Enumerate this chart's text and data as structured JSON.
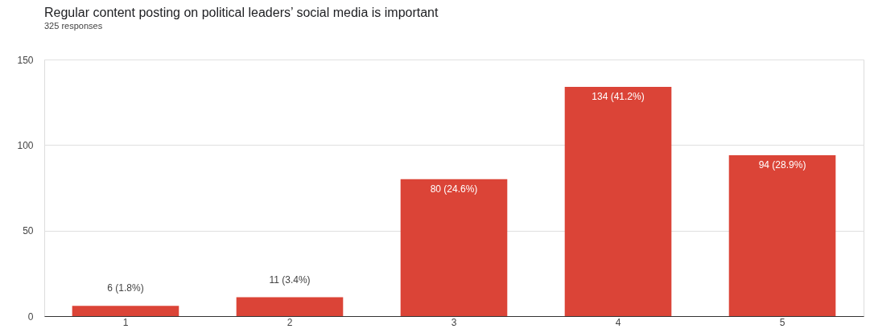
{
  "chart_data": {
    "type": "bar",
    "title": "Regular content posting on political leaders’ social media is important",
    "subtitle": "325 responses",
    "categories": [
      "1",
      "2",
      "3",
      "4",
      "5"
    ],
    "values": [
      6,
      11,
      80,
      134,
      94
    ],
    "value_labels": [
      "6 (1.8%)",
      "11 (3.4%)",
      "80 (24.6%)",
      "134 (41.2%)",
      "94 (28.9%)"
    ],
    "color": "#db4437",
    "ylim": [
      0,
      150
    ],
    "yticks": [
      0,
      50,
      100,
      150
    ],
    "grid": "y"
  }
}
